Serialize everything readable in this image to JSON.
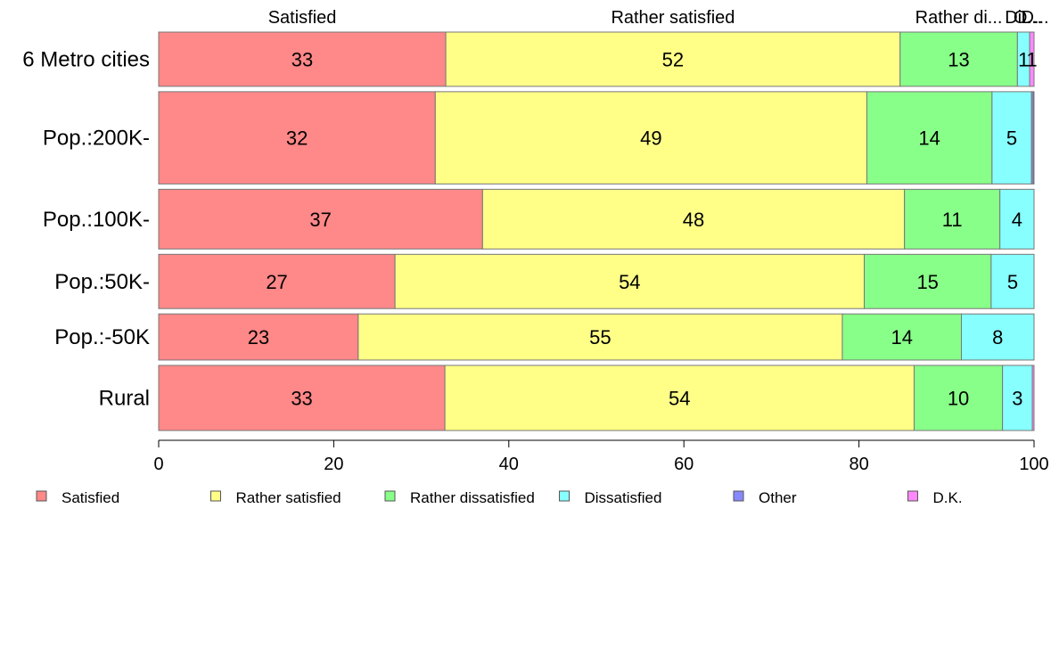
{
  "chart_data": {
    "type": "bar",
    "orientation": "horizontal",
    "stacked": true,
    "categories": [
      "6 Metro cities",
      "Pop.:200K-",
      "Pop.:100K-",
      "Pop.:50K-",
      "Pop.:-50K",
      "Rural"
    ],
    "row_weights": [
      1.0,
      1.7,
      1.1,
      1.0,
      0.85,
      1.2
    ],
    "series": [
      {
        "name": "Satisfied",
        "color": "#FF8888",
        "values": [
          32.8,
          31.6,
          37.0,
          27.0,
          22.8,
          32.7
        ]
      },
      {
        "name": "Rather satisfied",
        "color": "#FFFF88",
        "values": [
          51.9,
          49.3,
          48.2,
          53.6,
          55.3,
          53.6
        ]
      },
      {
        "name": "Rather dissatisfied",
        "color": "#88FF88",
        "values": [
          13.4,
          14.3,
          10.9,
          14.5,
          13.6,
          10.1
        ]
      },
      {
        "name": "Dissatisfied",
        "color": "#88FFFF",
        "values": [
          1.4,
          4.5,
          3.9,
          4.9,
          8.3,
          3.4
        ]
      },
      {
        "name": "Other",
        "color": "#8888FF",
        "values": [
          0.0,
          0.2,
          0.0,
          0.0,
          0.0,
          0.0
        ]
      },
      {
        "name": "D.K.",
        "color": "#FF88FF",
        "values": [
          0.5,
          0.1,
          0.0,
          0.0,
          0.0,
          0.2
        ]
      }
    ],
    "top_labels": [
      "Satisfied",
      "Rather satisfied",
      "Rather di...",
      "Di...",
      "O...",
      "D..."
    ],
    "xlim": [
      0,
      100
    ],
    "xticks": [
      0,
      20,
      40,
      60,
      80,
      100
    ],
    "legend_position": "bottom",
    "grid": false
  }
}
